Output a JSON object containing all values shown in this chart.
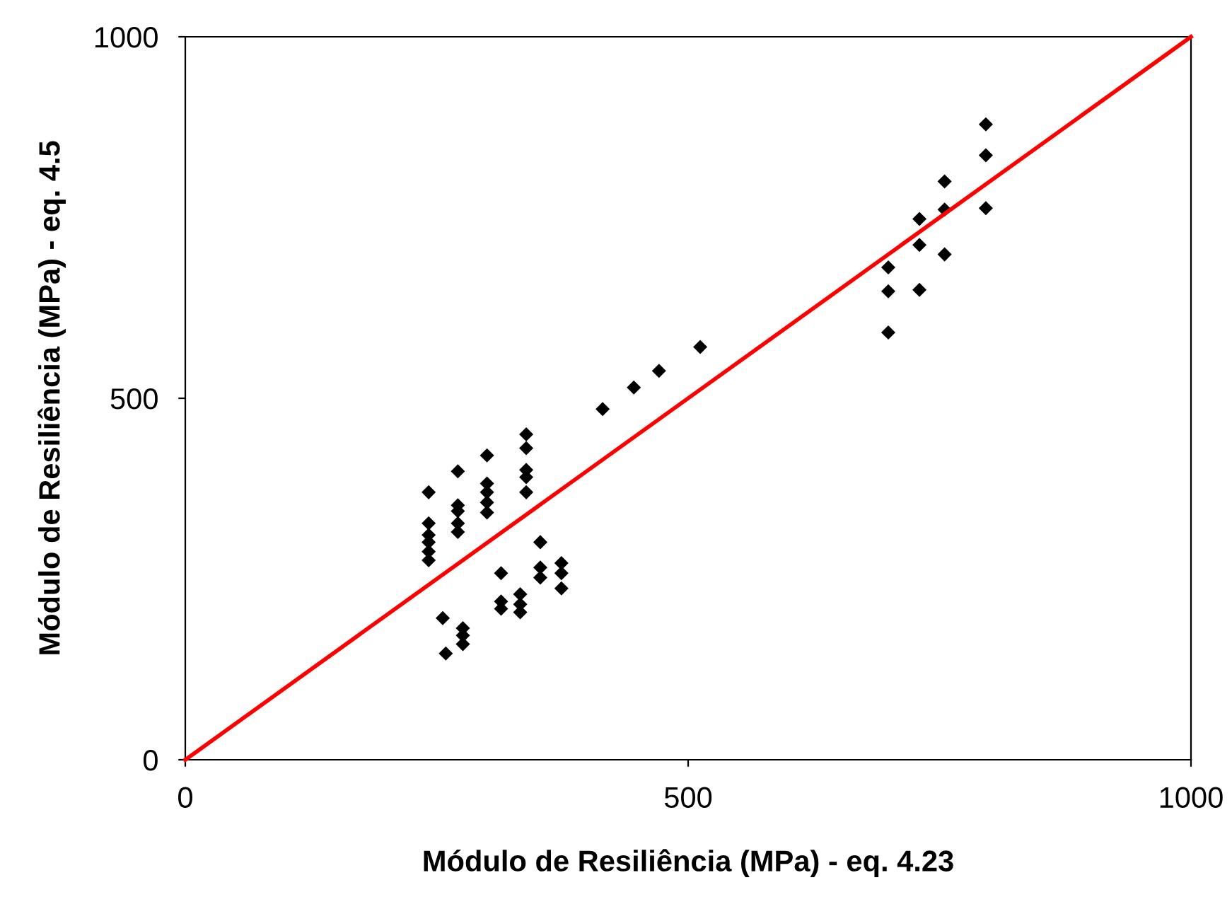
{
  "chart_data": {
    "type": "scatter",
    "xlabel": "Módulo de Resiliência (MPa) - eq. 4.23",
    "ylabel": "Módulo de Resiliência (MPa) - eq. 4.5",
    "xlim": [
      0,
      1000
    ],
    "ylim": [
      0,
      1000
    ],
    "xticks": [
      0,
      500,
      1000
    ],
    "yticks": [
      0,
      500,
      1000
    ],
    "grid": false,
    "legend": false,
    "series": [
      {
        "color": "#000000",
        "marker": "diamond",
        "x": [
          242,
          242,
          242,
          242,
          242,
          242,
          271,
          271,
          271,
          271,
          271,
          300,
          300,
          300,
          300,
          300,
          339,
          339,
          339,
          339,
          339,
          256,
          276,
          276,
          276,
          259,
          314,
          314,
          314,
          333,
          333,
          333,
          353,
          353,
          353,
          374,
          374,
          374,
          415,
          446,
          471,
          512,
          796,
          796,
          796,
          755,
          755,
          755,
          730,
          730,
          730,
          699,
          699,
          699
        ],
        "values": [
          370,
          327,
          311,
          301,
          288,
          276,
          399,
          352,
          344,
          327,
          315,
          421,
          382,
          370,
          356,
          342,
          450,
          431,
          401,
          391,
          370,
          196,
          182,
          172,
          160,
          147,
          258,
          219,
          209,
          229,
          215,
          204,
          301,
          266,
          252,
          272,
          258,
          237,
          485,
          515,
          538,
          571,
          879,
          836,
          763,
          800,
          761,
          699,
          748,
          712,
          650,
          681,
          648,
          591
        ]
      },
      {
        "type": "line",
        "color": "#ff0000",
        "marker": "none",
        "line_style": "solid",
        "x": [
          0,
          1000
        ],
        "values": [
          0,
          1000
        ]
      }
    ]
  }
}
